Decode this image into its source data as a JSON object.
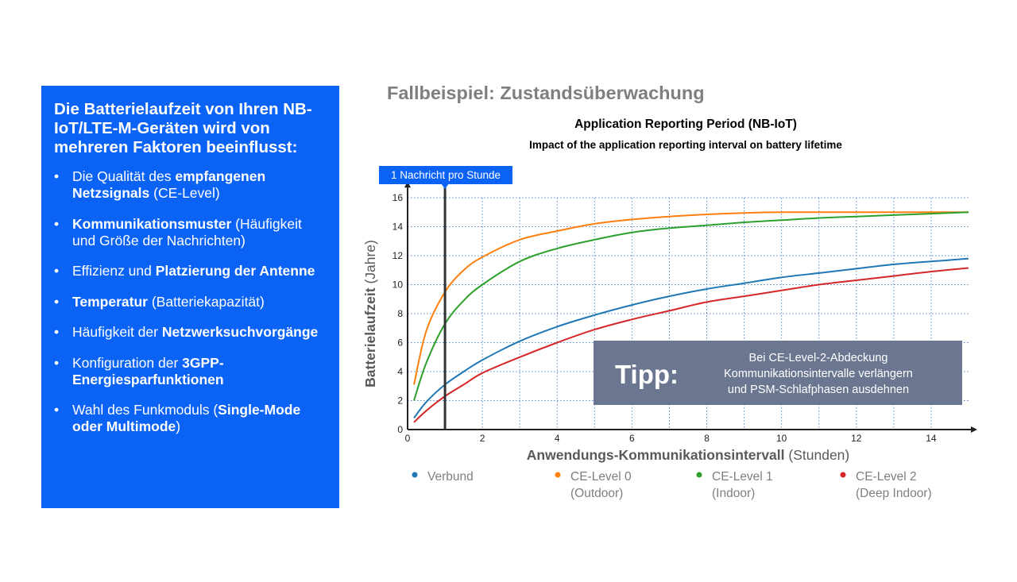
{
  "info_panel": {
    "heading": "Die Batterielaufzeit von Ihren NB-IoT/LTE-M-Geräten wird von mehreren Faktoren beeinflusst:",
    "bullets": [
      [
        {
          "t": "Die Qualität des ",
          "b": false
        },
        {
          "t": "empfangenen Netzsignals",
          "b": true
        },
        {
          "t": " (CE-Level)",
          "b": false
        }
      ],
      [
        {
          "t": "Kommunikationsmuster",
          "b": true
        },
        {
          "t": " (Häufigkeit und Größe der Nachrichten)",
          "b": false
        }
      ],
      [
        {
          "t": "Effizienz und ",
          "b": false
        },
        {
          "t": "Platzierung der Antenne",
          "b": true
        }
      ],
      [
        {
          "t": "Temperatur",
          "b": true
        },
        {
          "t": " (Batteriekapazität)",
          "b": false
        }
      ],
      [
        {
          "t": "Häufigkeit der ",
          "b": false
        },
        {
          "t": "Netzwerksuchvorgänge",
          "b": true
        }
      ],
      [
        {
          "t": "Konfiguration der ",
          "b": false
        },
        {
          "t": "3GPP-Energiesparfunktionen",
          "b": true
        }
      ],
      [
        {
          "t": "Wahl des Funkmoduls (",
          "b": false
        },
        {
          "t": "Single-Mode oder Multimode",
          "b": true
        },
        {
          "t": ")",
          "b": false
        }
      ]
    ]
  },
  "page_heading": "Fallbeispiel: Zustandsüberwachung",
  "chart_data": {
    "type": "line",
    "title": "Application Reporting Period (NB-IoT)",
    "subtitle": "Impact of the application reporting interval on battery lifetime",
    "xlabel_bold": "Anwendungs-Kommunikationsintervall",
    "xlabel_unit": " (Stunden)",
    "ylabel_bold": "Batterielaufzeit",
    "ylabel_unit": " (Jahre)",
    "xlim": [
      0,
      15
    ],
    "ylim": [
      0,
      16
    ],
    "xticks": [
      0,
      2,
      4,
      6,
      8,
      10,
      12,
      14
    ],
    "yticks": [
      0,
      2,
      4,
      6,
      8,
      10,
      12,
      14,
      16
    ],
    "grid": true,
    "legend_position": "bottom",
    "marker": {
      "x": 1,
      "label": "1 Nachricht pro Stunde"
    },
    "callout": {
      "big": "Tipp:",
      "lines": [
        "Bei CE-Level-2-Abdeckung",
        "Kommunikationsintervalle verlängern",
        "und PSM-Schlafphasen ausdehnen"
      ]
    },
    "series": [
      {
        "name": "Verbund",
        "name2": "",
        "color": "#1f77b4",
        "x": [
          0.17,
          0.5,
          1,
          1.5,
          2,
          3,
          4,
          5,
          6,
          7,
          8,
          9,
          10,
          11,
          12,
          13,
          14,
          15
        ],
        "y": [
          0.8,
          1.9,
          3.1,
          4.0,
          4.8,
          6.1,
          7.1,
          7.9,
          8.6,
          9.2,
          9.7,
          10.1,
          10.5,
          10.8,
          11.1,
          11.4,
          11.6,
          11.8
        ]
      },
      {
        "name": "CE-Level 0",
        "name2": "(Outdoor)",
        "color": "#ff7f0e",
        "x": [
          0.17,
          0.5,
          1,
          1.5,
          2,
          3,
          4,
          5,
          6,
          7,
          8,
          9,
          10,
          11,
          12,
          13,
          14,
          15
        ],
        "y": [
          3.1,
          6.8,
          9.5,
          11.0,
          11.9,
          13.1,
          13.7,
          14.2,
          14.5,
          14.7,
          14.85,
          14.95,
          15.0,
          15.0,
          15.0,
          15.0,
          15.0,
          15.0
        ]
      },
      {
        "name": "CE-Level 1",
        "name2": "(Indoor)",
        "color": "#2ca02c",
        "x": [
          0.17,
          0.5,
          1,
          1.5,
          2,
          3,
          4,
          5,
          6,
          7,
          8,
          9,
          10,
          11,
          12,
          13,
          14,
          15
        ],
        "y": [
          2.0,
          4.6,
          7.3,
          8.9,
          10.0,
          11.6,
          12.5,
          13.1,
          13.6,
          13.9,
          14.1,
          14.3,
          14.45,
          14.6,
          14.7,
          14.8,
          14.9,
          15.0
        ]
      },
      {
        "name": "CE-Level 2",
        "name2": "(Deep Indoor)",
        "color": "#d62728",
        "x": [
          0.17,
          0.5,
          1,
          1.5,
          2,
          3,
          4,
          5,
          6,
          7,
          8,
          9,
          10,
          11,
          12,
          13,
          14,
          15
        ],
        "y": [
          0.5,
          1.3,
          2.3,
          3.1,
          3.9,
          5.0,
          6.0,
          6.9,
          7.6,
          8.2,
          8.8,
          9.2,
          9.6,
          10.0,
          10.3,
          10.6,
          10.9,
          11.15
        ]
      }
    ]
  }
}
